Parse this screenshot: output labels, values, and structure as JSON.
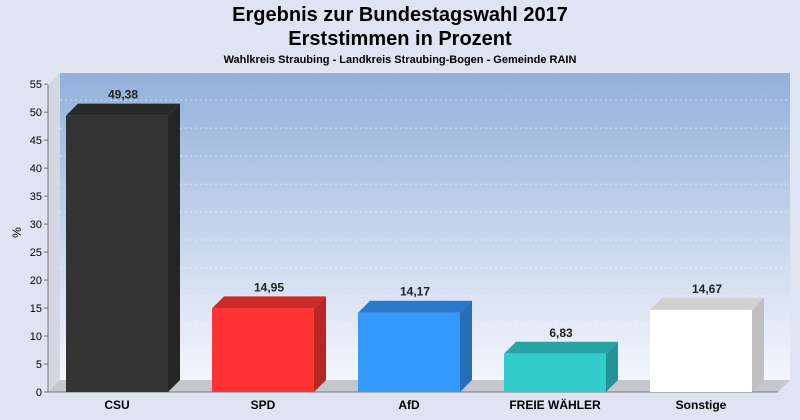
{
  "chart_data": {
    "type": "bar",
    "title": "Ergebnis zur Bundestagswahl 2017",
    "subtitle": "Erststimmen in Prozent",
    "caption": "Wahlkreis Straubing - Landkreis Straubing-Bogen - Gemeinde RAIN",
    "xlabel": "",
    "ylabel": "%",
    "ylim": [
      0,
      57
    ],
    "yticks": [
      0,
      5,
      10,
      15,
      20,
      25,
      30,
      35,
      40,
      45,
      50,
      55
    ],
    "grid": true,
    "categories": [
      "CSU",
      "SPD",
      "AfD",
      "FREIE WÄHLER",
      "Sonstige"
    ],
    "values": [
      49.38,
      14.95,
      14.17,
      6.83,
      14.67
    ],
    "value_labels": [
      "49,38",
      "14,95",
      "14,17",
      "6,83",
      "14,67"
    ],
    "colors": [
      "#333333",
      "#ff3333",
      "#3399ff",
      "#33cccc",
      "#ffffff"
    ]
  }
}
